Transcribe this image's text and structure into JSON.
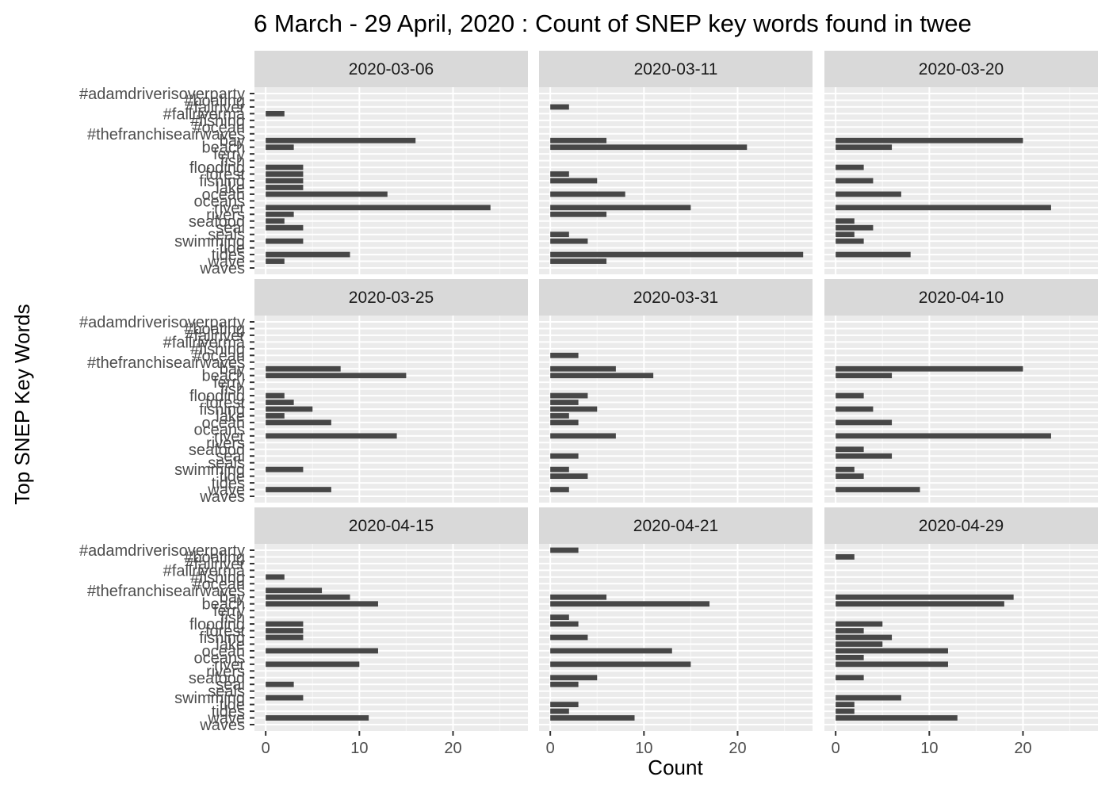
{
  "chart_data": {
    "type": "bar",
    "orientation": "horizontal",
    "layout": "facet-grid 3x3",
    "title": "6 March -  29 April, 2020 : Count of SNEP key words found in twee",
    "xlabel": "Count",
    "ylabel": "Top SNEP Key Words",
    "xlim": [
      -1.2,
      28
    ],
    "x_ticks": [
      0,
      10,
      20
    ],
    "grid": true,
    "colors": {
      "bar": "#474747",
      "panel_background": "#ebebeb",
      "grid_major": "#ffffff",
      "grid_minor": "#f5f5f5",
      "strip_background": "#d9d9d9",
      "tick_text": "#4d4d4d"
    },
    "categories": [
      "waves",
      "wave",
      "tides",
      "tide",
      "swimming",
      "seals",
      "seal",
      "seafood",
      "rivers",
      "river",
      "oceans",
      "ocean",
      "lake",
      "fishing",
      "forest",
      "flooding",
      "fish",
      "ferry",
      "beach",
      "bay",
      "#thefranchiseairwaves",
      "#ocean",
      "#fishing",
      "#fallriverma",
      "#fallriver",
      "#boating",
      "#adamdriverisoverparty"
    ],
    "panels": [
      {
        "label": "2020-03-06",
        "values": [
          0,
          2,
          9,
          0,
          4,
          0,
          4,
          2,
          3,
          24,
          0,
          13,
          4,
          4,
          4,
          4,
          0,
          0,
          3,
          16,
          0,
          0,
          0,
          2,
          0,
          0,
          0
        ]
      },
      {
        "label": "2020-03-11",
        "values": [
          0,
          6,
          27,
          0,
          4,
          2,
          0,
          0,
          6,
          15,
          0,
          8,
          0,
          5,
          2,
          0,
          0,
          0,
          21,
          6,
          0,
          0,
          0,
          0,
          2,
          0,
          0
        ]
      },
      {
        "label": "2020-03-20",
        "values": [
          0,
          0,
          8,
          0,
          3,
          2,
          4,
          2,
          0,
          23,
          0,
          7,
          0,
          4,
          0,
          3,
          0,
          0,
          6,
          20,
          0,
          0,
          0,
          0,
          0,
          0,
          0
        ]
      },
      {
        "label": "2020-03-25",
        "values": [
          0,
          7,
          0,
          0,
          4,
          0,
          0,
          0,
          0,
          14,
          0,
          7,
          2,
          5,
          3,
          2,
          0,
          0,
          15,
          8,
          0,
          0,
          0,
          0,
          0,
          0,
          0
        ]
      },
      {
        "label": "2020-03-31",
        "values": [
          0,
          2,
          0,
          4,
          2,
          0,
          3,
          0,
          0,
          7,
          0,
          3,
          2,
          5,
          3,
          4,
          0,
          0,
          11,
          7,
          0,
          3,
          0,
          0,
          0,
          0,
          0
        ]
      },
      {
        "label": "2020-04-10",
        "values": [
          0,
          9,
          0,
          3,
          2,
          0,
          6,
          3,
          0,
          23,
          0,
          6,
          0,
          4,
          0,
          3,
          0,
          0,
          6,
          20,
          0,
          0,
          0,
          0,
          0,
          0,
          0
        ]
      },
      {
        "label": "2020-04-15",
        "values": [
          0,
          11,
          0,
          0,
          4,
          0,
          3,
          0,
          0,
          10,
          0,
          12,
          0,
          4,
          4,
          4,
          0,
          0,
          12,
          9,
          6,
          0,
          2,
          0,
          0,
          0,
          0
        ]
      },
      {
        "label": "2020-04-21",
        "values": [
          0,
          9,
          2,
          3,
          0,
          0,
          3,
          5,
          0,
          15,
          0,
          13,
          0,
          4,
          0,
          3,
          2,
          0,
          17,
          6,
          0,
          0,
          0,
          0,
          0,
          0,
          3
        ]
      },
      {
        "label": "2020-04-29",
        "values": [
          0,
          13,
          2,
          2,
          7,
          0,
          0,
          3,
          0,
          12,
          3,
          12,
          5,
          6,
          3,
          5,
          0,
          0,
          18,
          19,
          0,
          0,
          0,
          0,
          0,
          2,
          0
        ]
      }
    ]
  }
}
